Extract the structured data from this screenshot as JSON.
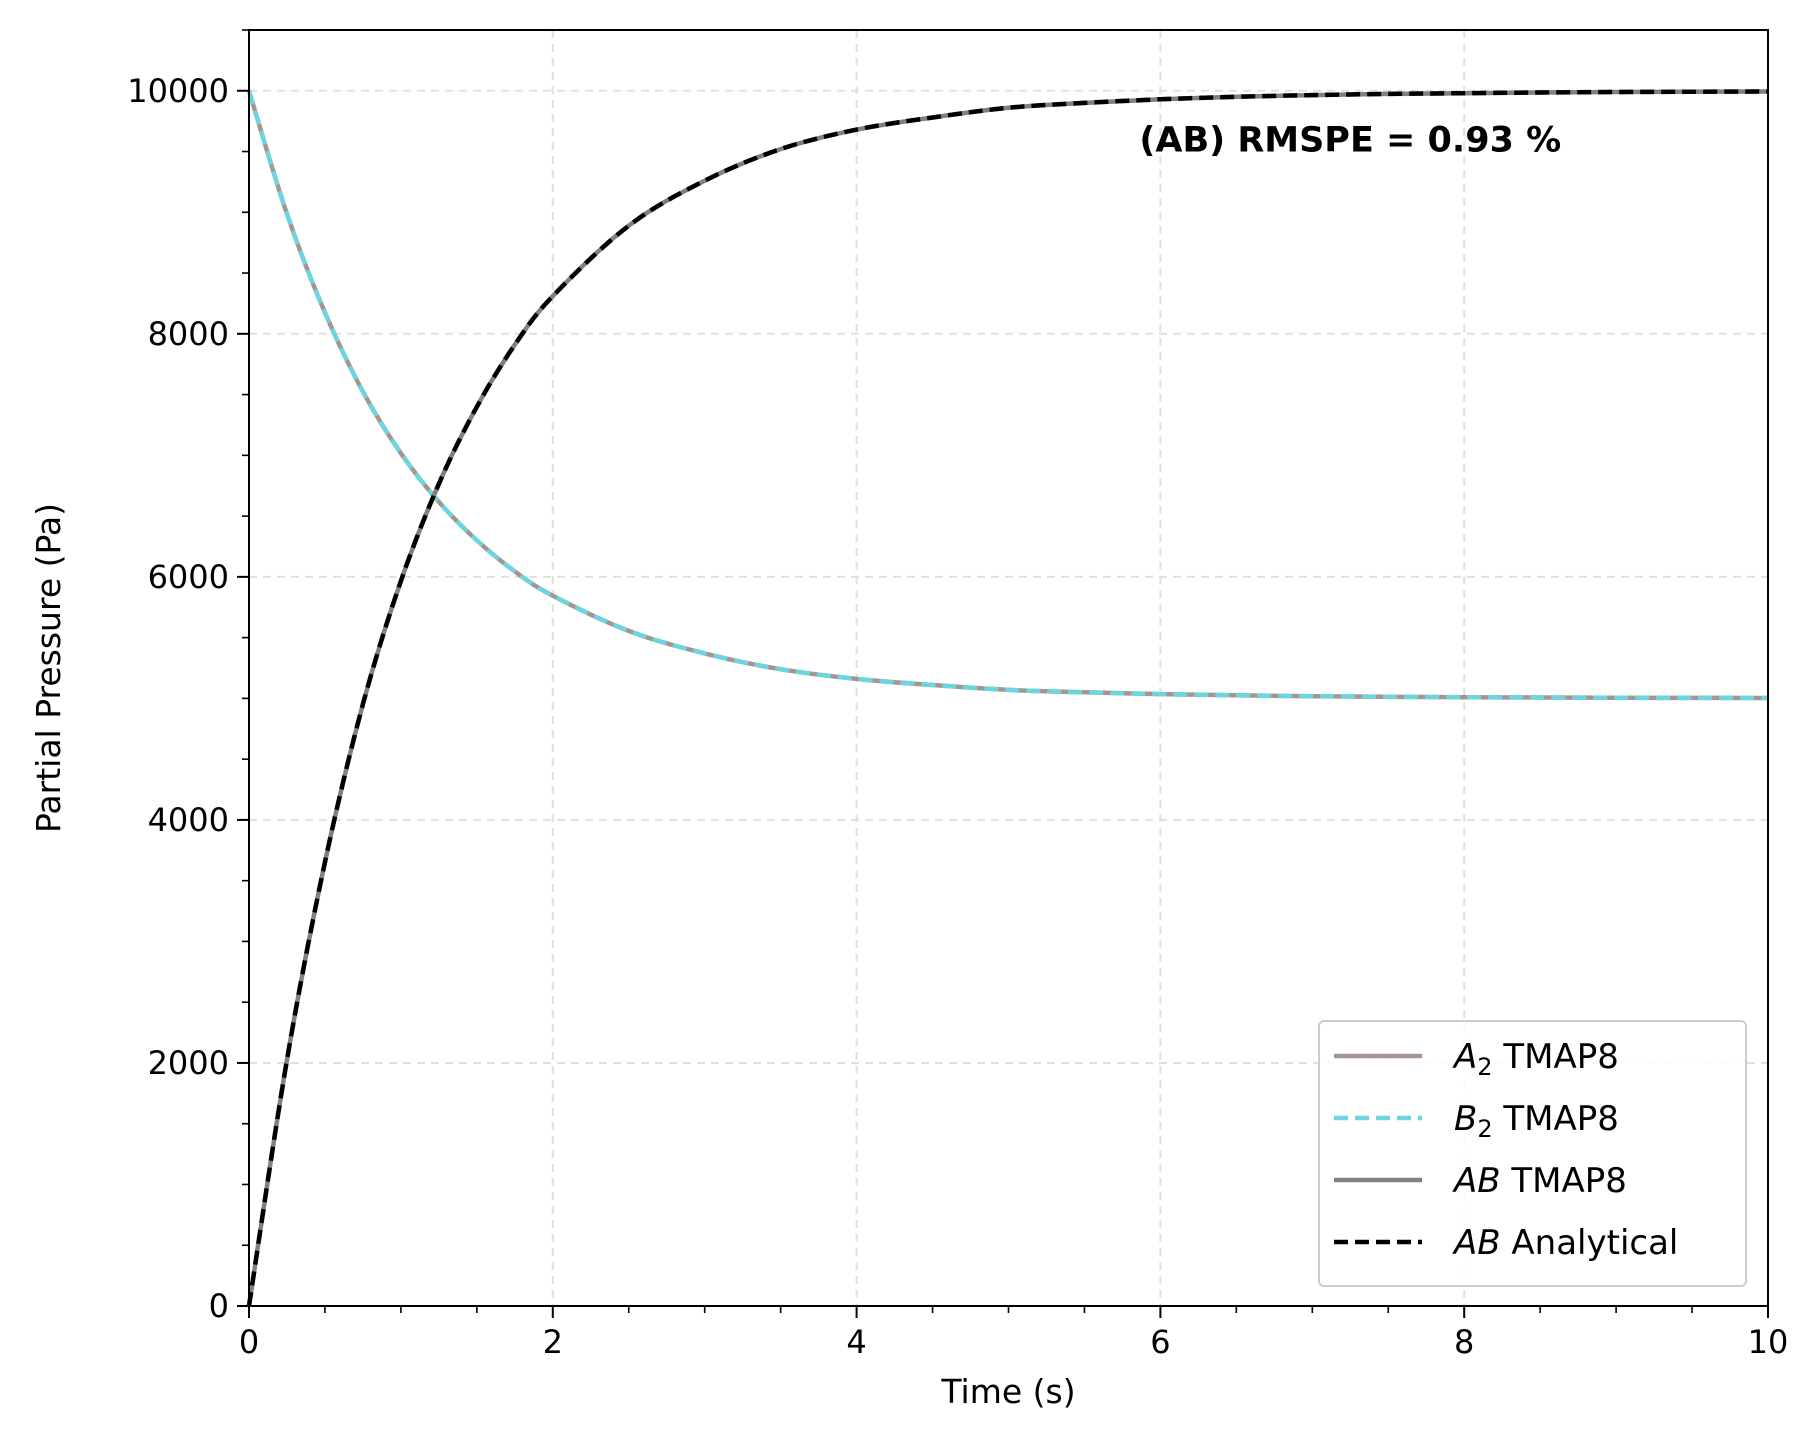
{
  "chart_data": {
    "type": "line",
    "xlabel": "Time (s)",
    "ylabel": "Partial Pressure (Pa)",
    "xlim": [
      0,
      10
    ],
    "ylim": [
      0,
      10500
    ],
    "xticks": [
      0,
      2,
      4,
      6,
      8,
      10
    ],
    "yticks": [
      0,
      2000,
      4000,
      6000,
      8000,
      10000
    ],
    "xtick_labels": [
      "0",
      "2",
      "4",
      "6",
      "8",
      "10"
    ],
    "ytick_labels": [
      "0",
      "2000",
      "4000",
      "6000",
      "8000",
      "10000"
    ],
    "grid": true,
    "legend_position": "bottom-right",
    "annotation": "(AB) RMSPE = 0.93 %",
    "x": [
      0,
      0.25,
      0.5,
      0.75,
      1,
      1.25,
      1.5,
      1.75,
      2,
      2.5,
      3,
      3.5,
      4,
      4.5,
      5,
      5.5,
      6,
      6.5,
      7,
      7.5,
      8,
      8.5,
      9,
      9.5,
      10
    ],
    "series": [
      {
        "name_main": "A",
        "name_sub": "2",
        "name_rest": " TMAP8",
        "color": "#a6958f",
        "style": "solid",
        "values": [
          10000,
          8986,
          8175,
          7524,
          7017,
          6617,
          6300,
          6045,
          5845,
          5555,
          5370,
          5240,
          5160,
          5110,
          5070,
          5050,
          5035,
          5025,
          5018,
          5013,
          5010,
          5007,
          5005,
          5004,
          5003
        ]
      },
      {
        "name_main": "B",
        "name_sub": "2",
        "name_rest": " TMAP8",
        "color": "#6dd5e0",
        "style": "dashed",
        "values": [
          10000,
          8986,
          8175,
          7524,
          7017,
          6617,
          6300,
          6045,
          5845,
          5555,
          5370,
          5240,
          5160,
          5110,
          5070,
          5050,
          5035,
          5025,
          5018,
          5013,
          5010,
          5007,
          5005,
          5004,
          5003
        ]
      },
      {
        "name_main": "AB",
        "name_sub": "",
        "name_rest": " TMAP8",
        "color": "#808080",
        "style": "solid",
        "values": [
          0,
          2027,
          3650,
          4952,
          5966,
          6766,
          7400,
          7910,
          8310,
          8890,
          9260,
          9520,
          9680,
          9780,
          9860,
          9900,
          9930,
          9950,
          9964,
          9974,
          9980,
          9986,
          9990,
          9992,
          9994
        ]
      },
      {
        "name_main": "AB",
        "name_sub": "",
        "name_rest": " Analytical",
        "color": "#000000",
        "style": "dashed",
        "values": [
          0,
          2027,
          3650,
          4952,
          5966,
          6766,
          7400,
          7910,
          8310,
          8890,
          9260,
          9520,
          9680,
          9780,
          9860,
          9900,
          9930,
          9950,
          9964,
          9974,
          9980,
          9986,
          9990,
          9992,
          9994
        ]
      }
    ]
  }
}
